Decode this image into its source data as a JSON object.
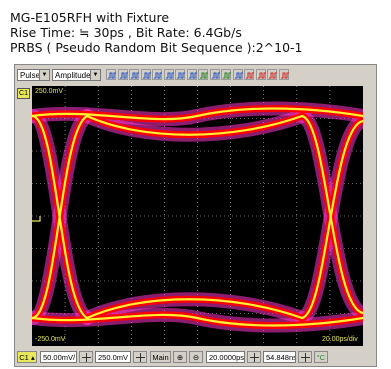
{
  "caption": {
    "line1": "MG-E105RFH with Fixture",
    "line2": "Rise Time: ≒ 30ps , Bit Rate: 6.4Gb/s",
    "line3": "PRBS ( Pseudo Random Bit Sequence ):2^10-1"
  },
  "toolbar": {
    "mode_select": "Pulse",
    "measure_select": "Amplitude",
    "icons": [
      "rise-icon",
      "fall-icon",
      "width-icon",
      "period-icon",
      "freq-icon",
      "duty-icon",
      "overshoot-icon",
      "jitter-icon",
      "eye-icon",
      "crossing-icon",
      "histogram-icon",
      "mask-icon",
      "delete-icon",
      "delete-all-icon",
      "cursor-icon",
      "pattern-icon"
    ]
  },
  "channel": {
    "tag": "C1"
  },
  "display": {
    "top_label": "250.0mV",
    "bottom_label": "-250.0mV",
    "time_label": "20.00ps/div"
  },
  "bottom_bar": {
    "channel": "C1",
    "vscale": "50.00mV/",
    "offset": "250.0mV",
    "timebase_mode": "Main",
    "timescale": "20.0000ps",
    "position": "54.848ns",
    "status": "°C"
  },
  "colors": {
    "trace_red": "#ff0000",
    "trace_magenta": "#ff33cc",
    "trace_yellow": "#ffff33",
    "grid": "#c8c8c8",
    "label_yellow": "#e8e85a",
    "background": "#000000"
  }
}
